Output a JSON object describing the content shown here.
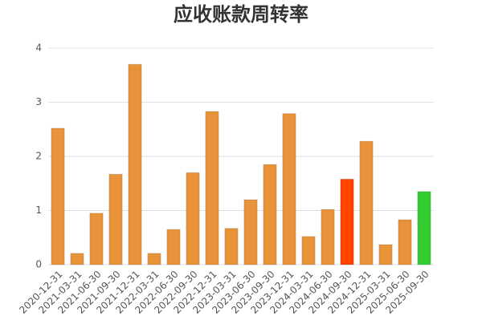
{
  "chart_data": {
    "type": "bar",
    "title": "应收账款周转率",
    "categories": [
      "2020-12-31",
      "2021-03-31",
      "2021-06-30",
      "2021-09-30",
      "2021-12-31",
      "2022-03-31",
      "2022-06-30",
      "2022-09-30",
      "2022-12-31",
      "2023-03-31",
      "2023-06-30",
      "2023-09-30",
      "2023-12-31",
      "2024-03-31",
      "2024-06-30",
      "2024-09-30",
      "2024-12-31",
      "2025-03-31",
      "2025-06-30",
      "2025-09-30"
    ],
    "values": [
      2.52,
      0.21,
      0.95,
      1.67,
      3.7,
      0.21,
      0.65,
      1.7,
      2.83,
      0.67,
      1.2,
      1.85,
      2.79,
      0.52,
      1.02,
      1.58,
      2.28,
      0.37,
      0.83,
      1.35
    ],
    "colors": [
      "#e8923a",
      "#e8923a",
      "#e8923a",
      "#e8923a",
      "#e8923a",
      "#e8923a",
      "#e8923a",
      "#e8923a",
      "#e8923a",
      "#e8923a",
      "#e8923a",
      "#e8923a",
      "#e8923a",
      "#e8923a",
      "#e8923a",
      "#ff4500",
      "#e8923a",
      "#e8923a",
      "#e8923a",
      "#33cc33"
    ],
    "ylim": [
      0,
      4
    ],
    "yticks": [
      0,
      1,
      2,
      3,
      4
    ],
    "grid": true
  }
}
